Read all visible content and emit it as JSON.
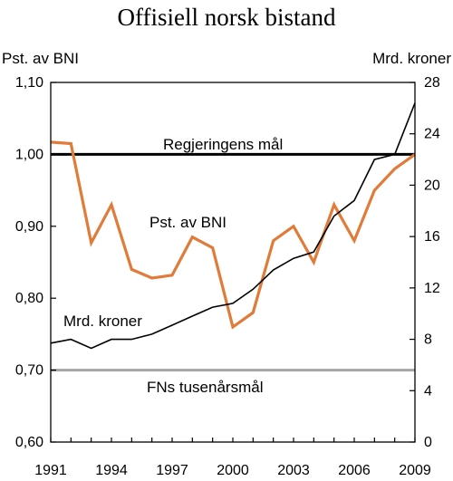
{
  "chart_data": {
    "type": "line",
    "title": "Offisiell norsk bistand",
    "left_axis_label": "Pst. av BNI",
    "right_axis_label": "Mrd. kroner",
    "left_ylim": [
      0.6,
      1.1
    ],
    "right_ylim": [
      0,
      28
    ],
    "left_ticks": [
      "1,10",
      "1,00",
      "0,90",
      "0,80",
      "0,70",
      "0,60"
    ],
    "left_tick_values": [
      1.1,
      1.0,
      0.9,
      0.8,
      0.7,
      0.6
    ],
    "right_ticks": [
      "28",
      "24",
      "20",
      "16",
      "12",
      "8",
      "4",
      "0"
    ],
    "right_tick_values": [
      28,
      24,
      20,
      16,
      12,
      8,
      4,
      0
    ],
    "xlim": [
      1991,
      2009
    ],
    "x_tick_labels": [
      "1991",
      "1994",
      "1997",
      "2000",
      "2003",
      "2006",
      "2009"
    ],
    "x_tick_values": [
      1991,
      1994,
      1997,
      2000,
      2003,
      2006,
      2009
    ],
    "x": [
      1991,
      1992,
      1993,
      1994,
      1995,
      1996,
      1997,
      1998,
      1999,
      2000,
      2001,
      2002,
      2003,
      2004,
      2005,
      2006,
      2007,
      2008,
      2009
    ],
    "series": [
      {
        "name": "Pst. av BNI",
        "axis": "left",
        "color": "#e07b39",
        "values": [
          1.017,
          1.015,
          0.877,
          0.93,
          0.84,
          0.828,
          0.832,
          0.885,
          0.87,
          0.76,
          0.78,
          0.88,
          0.9,
          0.85,
          0.93,
          0.88,
          0.95,
          0.98,
          1.0
        ]
      },
      {
        "name": "Mrd. kroner",
        "axis": "right",
        "color": "#000000",
        "values": [
          7.7,
          8.0,
          7.3,
          8.0,
          8.0,
          8.4,
          9.1,
          9.8,
          10.5,
          10.8,
          11.9,
          13.4,
          14.3,
          14.8,
          17.6,
          18.8,
          22.0,
          22.4,
          26.4
        ]
      }
    ],
    "reference_lines": [
      {
        "label": "Regjeringens mål",
        "value": 1.0,
        "axis": "left",
        "color": "#000000"
      },
      {
        "label": "FNs tusenårsmål",
        "value": 0.7,
        "axis": "left",
        "color": "#a6a6a6"
      }
    ],
    "annotations": [
      {
        "text": "Pst. av BNI",
        "series": "Pst. av BNI"
      },
      {
        "text": "Mrd. kroner",
        "series": "Mrd. kroner"
      }
    ],
    "grid": false
  }
}
